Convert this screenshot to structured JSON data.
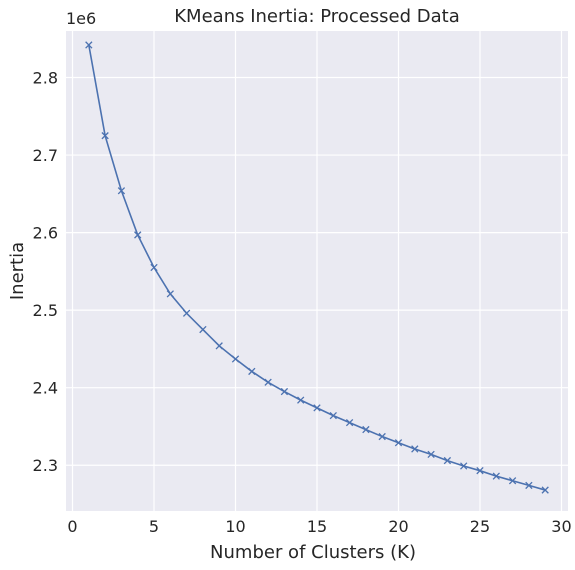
{
  "chart_data": {
    "type": "line",
    "title": "KMeans Inertia: Processed Data",
    "xlabel": "Number of Clusters (K)",
    "ylabel": "Inertia",
    "y_offset_label": "1e6",
    "xlim": [
      -0.4,
      30.4
    ],
    "ylim": [
      2.241,
      2.86
    ],
    "xticks": [
      0,
      5,
      10,
      15,
      20,
      25,
      30
    ],
    "yticks": [
      2.3,
      2.4,
      2.5,
      2.6,
      2.7,
      2.8
    ],
    "grid": true,
    "marker": "x",
    "colors": {
      "line": "#4c72b0",
      "plot_bg": "#eaeaf2",
      "grid": "#ffffff"
    },
    "series": [
      {
        "x": [
          1,
          2,
          3,
          4,
          5,
          6,
          7,
          8,
          9,
          10,
          11,
          12,
          13,
          14,
          15,
          16,
          17,
          18,
          19,
          20,
          21,
          22,
          23,
          24,
          25,
          26,
          27,
          28,
          29
        ],
        "values": [
          2.842,
          2.725,
          2.654,
          2.597,
          2.555,
          2.521,
          2.496,
          2.475,
          2.454,
          2.437,
          2.421,
          2.407,
          2.395,
          2.384,
          2.374,
          2.364,
          2.355,
          2.346,
          2.337,
          2.329,
          2.321,
          2.314,
          2.306,
          2.299,
          2.293,
          2.286,
          2.28,
          2.274,
          2.268
        ]
      }
    ]
  }
}
